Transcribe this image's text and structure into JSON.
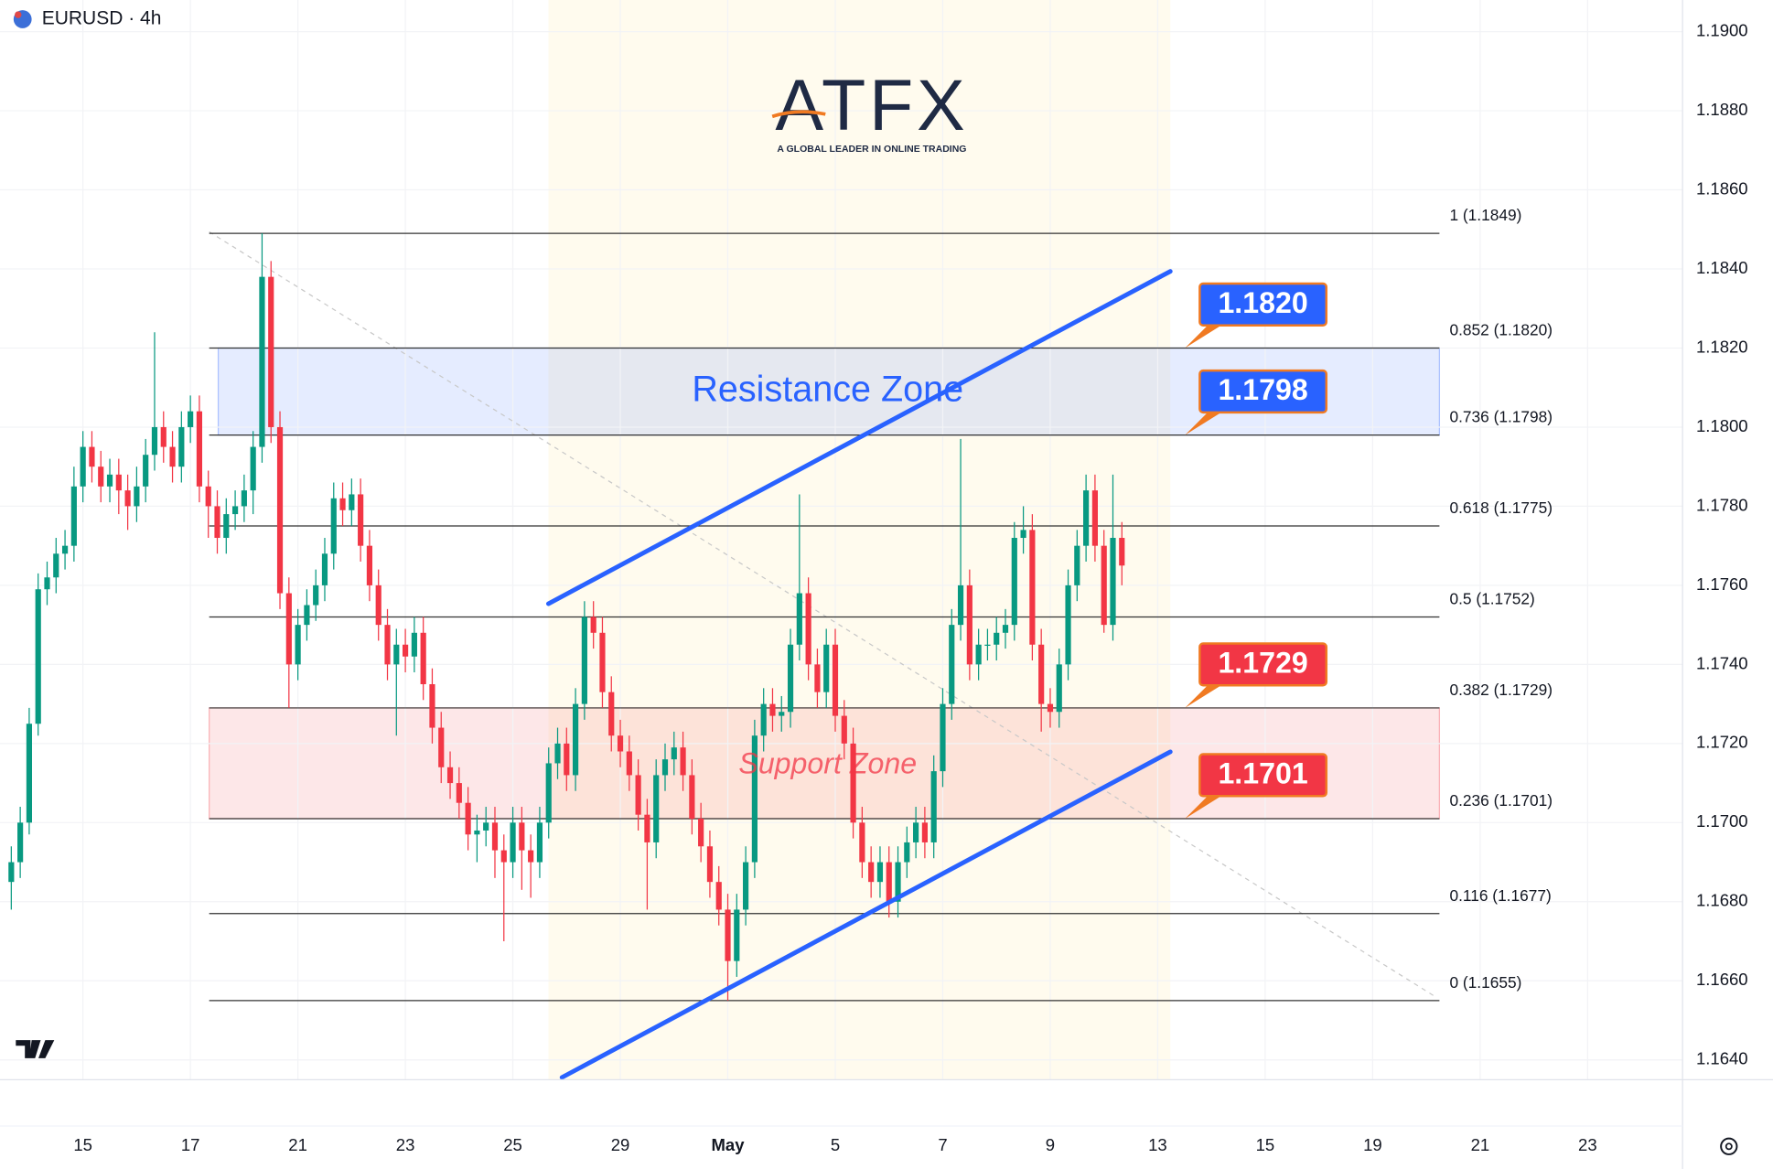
{
  "branding": {
    "symbol": "EURUSD · 4h",
    "logo": "ATFX",
    "tagline": "A GLOBAL LEADER IN ONLINE TRADING"
  },
  "chart_data": {
    "type": "candlestick",
    "up_color": "#089981",
    "down_color": "#f23645",
    "grid": true,
    "xlim": [
      -1.26,
      186.6
    ],
    "ylim": [
      1.1635,
      1.1908
    ],
    "xticks": [
      {
        "value": 8,
        "label": "15"
      },
      {
        "value": 20,
        "label": "17"
      },
      {
        "value": 32,
        "label": "21"
      },
      {
        "value": 44,
        "label": "23"
      },
      {
        "value": 56,
        "label": "25"
      },
      {
        "value": 68,
        "label": "29"
      },
      {
        "value": 80,
        "label": "May"
      },
      {
        "value": 92,
        "label": "5"
      },
      {
        "value": 104,
        "label": "7"
      },
      {
        "value": 116,
        "label": "9"
      },
      {
        "value": 128,
        "label": "13"
      },
      {
        "value": 140,
        "label": "15"
      },
      {
        "value": 152,
        "label": "19"
      },
      {
        "value": 164,
        "label": "21"
      },
      {
        "value": 176,
        "label": "23"
      }
    ],
    "yticks": [
      {
        "value": 1.19,
        "label": "1.1900"
      },
      {
        "value": 1.188,
        "label": "1.1880"
      },
      {
        "value": 1.186,
        "label": "1.1860"
      },
      {
        "value": 1.184,
        "label": "1.1840"
      },
      {
        "value": 1.182,
        "label": "1.1820"
      },
      {
        "value": 1.18,
        "label": "1.1800"
      },
      {
        "value": 1.178,
        "label": "1.1780"
      },
      {
        "value": 1.176,
        "label": "1.1760"
      },
      {
        "value": 1.174,
        "label": "1.1740"
      },
      {
        "value": 1.172,
        "label": "1.1720"
      },
      {
        "value": 1.17,
        "label": "1.1700"
      },
      {
        "value": 1.168,
        "label": "1.1680"
      },
      {
        "value": 1.166,
        "label": "1.1660"
      },
      {
        "value": 1.164,
        "label": "1.1640"
      }
    ],
    "candles": [
      [
        1.1685,
        1.1694,
        1.1678,
        1.169
      ],
      [
        1.169,
        1.1704,
        1.1686,
        1.17
      ],
      [
        1.17,
        1.1729,
        1.1697,
        1.1725
      ],
      [
        1.1725,
        1.1763,
        1.1722,
        1.1759
      ],
      [
        1.1759,
        1.1766,
        1.1755,
        1.1762
      ],
      [
        1.1762,
        1.1772,
        1.1758,
        1.1768
      ],
      [
        1.1768,
        1.1774,
        1.1764,
        1.177
      ],
      [
        1.177,
        1.179,
        1.1766,
        1.1785
      ],
      [
        1.1785,
        1.1799,
        1.1781,
        1.1795
      ],
      [
        1.1795,
        1.1799,
        1.1786,
        1.179
      ],
      [
        1.179,
        1.1794,
        1.1781,
        1.1785
      ],
      [
        1.1785,
        1.1792,
        1.1781,
        1.1788
      ],
      [
        1.1788,
        1.1792,
        1.1778,
        1.1784
      ],
      [
        1.1784,
        1.1788,
        1.1774,
        1.178
      ],
      [
        1.178,
        1.179,
        1.1776,
        1.1785
      ],
      [
        1.1785,
        1.1797,
        1.1781,
        1.1793
      ],
      [
        1.1793,
        1.1824,
        1.1789,
        1.18
      ],
      [
        1.18,
        1.1804,
        1.1791,
        1.1795
      ],
      [
        1.1795,
        1.1799,
        1.1786,
        1.179
      ],
      [
        1.179,
        1.1804,
        1.1786,
        1.18
      ],
      [
        1.18,
        1.1808,
        1.1796,
        1.1804
      ],
      [
        1.1804,
        1.1808,
        1.1781,
        1.1785
      ],
      [
        1.1785,
        1.1789,
        1.1772,
        1.178
      ],
      [
        1.178,
        1.1784,
        1.1768,
        1.1772
      ],
      [
        1.1772,
        1.1782,
        1.1768,
        1.1778
      ],
      [
        1.1778,
        1.1784,
        1.1774,
        1.178
      ],
      [
        1.178,
        1.1788,
        1.1776,
        1.1784
      ],
      [
        1.1784,
        1.1799,
        1.1778,
        1.1795
      ],
      [
        1.1795,
        1.1849,
        1.1791,
        1.1838
      ],
      [
        1.1838,
        1.1842,
        1.1796,
        1.18
      ],
      [
        1.18,
        1.1804,
        1.1754,
        1.1758
      ],
      [
        1.1758,
        1.1762,
        1.1729,
        1.174
      ],
      [
        1.174,
        1.1754,
        1.1736,
        1.175
      ],
      [
        1.175,
        1.1759,
        1.1746,
        1.1755
      ],
      [
        1.1755,
        1.1764,
        1.1751,
        1.176
      ],
      [
        1.176,
        1.1772,
        1.1756,
        1.1768
      ],
      [
        1.1768,
        1.1786,
        1.1764,
        1.1782
      ],
      [
        1.1782,
        1.1786,
        1.1775,
        1.1779
      ],
      [
        1.1779,
        1.1787,
        1.1775,
        1.1783
      ],
      [
        1.1783,
        1.1787,
        1.1766,
        1.177
      ],
      [
        1.177,
        1.1774,
        1.1756,
        1.176
      ],
      [
        1.176,
        1.1764,
        1.1746,
        1.175
      ],
      [
        1.175,
        1.1754,
        1.1736,
        1.174
      ],
      [
        1.174,
        1.1749,
        1.1722,
        1.1745
      ],
      [
        1.1745,
        1.1749,
        1.1738,
        1.1742
      ],
      [
        1.1742,
        1.1752,
        1.1738,
        1.1748
      ],
      [
        1.1748,
        1.1752,
        1.1731,
        1.1735
      ],
      [
        1.1735,
        1.1739,
        1.172,
        1.1724
      ],
      [
        1.1724,
        1.1728,
        1.171,
        1.1714
      ],
      [
        1.1714,
        1.1718,
        1.1706,
        1.171
      ],
      [
        1.171,
        1.1714,
        1.1701,
        1.1705
      ],
      [
        1.1705,
        1.1709,
        1.1693,
        1.1697
      ],
      [
        1.1697,
        1.1702,
        1.169,
        1.1698
      ],
      [
        1.1698,
        1.1704,
        1.1694,
        1.17
      ],
      [
        1.17,
        1.1704,
        1.1686,
        1.1693
      ],
      [
        1.1693,
        1.1697,
        1.167,
        1.169
      ],
      [
        1.169,
        1.1704,
        1.1686,
        1.17
      ],
      [
        1.17,
        1.1704,
        1.1683,
        1.1693
      ],
      [
        1.1693,
        1.1697,
        1.1681,
        1.169
      ],
      [
        1.169,
        1.1704,
        1.1686,
        1.17
      ],
      [
        1.17,
        1.1719,
        1.1696,
        1.1715
      ],
      [
        1.1715,
        1.1724,
        1.1711,
        1.172
      ],
      [
        1.172,
        1.1724,
        1.1708,
        1.1712
      ],
      [
        1.1712,
        1.1734,
        1.1708,
        1.173
      ],
      [
        1.173,
        1.1756,
        1.1726,
        1.1752
      ],
      [
        1.1752,
        1.1756,
        1.1744,
        1.1748
      ],
      [
        1.1748,
        1.1752,
        1.1729,
        1.1733
      ],
      [
        1.1733,
        1.1737,
        1.1718,
        1.1722
      ],
      [
        1.1722,
        1.1726,
        1.1714,
        1.1718
      ],
      [
        1.1718,
        1.1722,
        1.1708,
        1.1712
      ],
      [
        1.1712,
        1.1716,
        1.1698,
        1.1702
      ],
      [
        1.1702,
        1.1706,
        1.1678,
        1.1695
      ],
      [
        1.1695,
        1.1716,
        1.1691,
        1.1712
      ],
      [
        1.1712,
        1.172,
        1.1708,
        1.1716
      ],
      [
        1.1716,
        1.1723,
        1.1712,
        1.1719
      ],
      [
        1.1719,
        1.1723,
        1.1708,
        1.1712
      ],
      [
        1.1712,
        1.1716,
        1.1697,
        1.1701
      ],
      [
        1.1701,
        1.1705,
        1.169,
        1.1694
      ],
      [
        1.1694,
        1.1698,
        1.1681,
        1.1685
      ],
      [
        1.1685,
        1.1689,
        1.1674,
        1.1678
      ],
      [
        1.1678,
        1.1682,
        1.1655,
        1.1665
      ],
      [
        1.1665,
        1.1682,
        1.1661,
        1.1678
      ],
      [
        1.1678,
        1.1694,
        1.1674,
        1.169
      ],
      [
        1.169,
        1.1726,
        1.1686,
        1.1722
      ],
      [
        1.1722,
        1.1734,
        1.1718,
        1.173
      ],
      [
        1.173,
        1.1734,
        1.1723,
        1.1727
      ],
      [
        1.1727,
        1.1732,
        1.1723,
        1.1728
      ],
      [
        1.1728,
        1.1749,
        1.1724,
        1.1745
      ],
      [
        1.1745,
        1.1783,
        1.1741,
        1.1758
      ],
      [
        1.1758,
        1.1762,
        1.1736,
        1.174
      ],
      [
        1.174,
        1.1744,
        1.1729,
        1.1733
      ],
      [
        1.1733,
        1.1749,
        1.1729,
        1.1745
      ],
      [
        1.1745,
        1.1749,
        1.1723,
        1.1727
      ],
      [
        1.1727,
        1.1731,
        1.1716,
        1.172
      ],
      [
        1.172,
        1.1724,
        1.1696,
        1.17
      ],
      [
        1.17,
        1.1704,
        1.1686,
        1.169
      ],
      [
        1.169,
        1.1694,
        1.1681,
        1.1685
      ],
      [
        1.1685,
        1.1694,
        1.1681,
        1.169
      ],
      [
        1.169,
        1.1694,
        1.1676,
        1.168
      ],
      [
        1.168,
        1.1694,
        1.1676,
        1.169
      ],
      [
        1.169,
        1.1699,
        1.1686,
        1.1695
      ],
      [
        1.1695,
        1.1704,
        1.1691,
        1.17
      ],
      [
        1.17,
        1.1704,
        1.1691,
        1.1695
      ],
      [
        1.1695,
        1.1717,
        1.1691,
        1.1713
      ],
      [
        1.1713,
        1.1734,
        1.1709,
        1.173
      ],
      [
        1.173,
        1.1754,
        1.1726,
        1.175
      ],
      [
        1.175,
        1.1797,
        1.1746,
        1.176
      ],
      [
        1.176,
        1.1764,
        1.1736,
        1.174
      ],
      [
        1.174,
        1.1749,
        1.1736,
        1.1745
      ],
      [
        1.1745,
        1.1749,
        1.1741,
        1.1745
      ],
      [
        1.1745,
        1.1752,
        1.1741,
        1.1748
      ],
      [
        1.1748,
        1.1754,
        1.1744,
        1.175
      ],
      [
        1.175,
        1.1776,
        1.1746,
        1.1772
      ],
      [
        1.1772,
        1.178,
        1.1768,
        1.1774
      ],
      [
        1.1774,
        1.1778,
        1.1741,
        1.1745
      ],
      [
        1.1745,
        1.1749,
        1.1723,
        1.173
      ],
      [
        1.173,
        1.1734,
        1.1724,
        1.1728
      ],
      [
        1.1728,
        1.1744,
        1.1724,
        1.174
      ],
      [
        1.174,
        1.1764,
        1.1736,
        1.176
      ],
      [
        1.176,
        1.1774,
        1.1756,
        1.177
      ],
      [
        1.177,
        1.1788,
        1.1766,
        1.1784
      ],
      [
        1.1784,
        1.1788,
        1.1766,
        1.177
      ],
      [
        1.177,
        1.1774,
        1.1748,
        1.175
      ],
      [
        1.175,
        1.1788,
        1.1746,
        1.1772
      ],
      [
        1.1772,
        1.1776,
        1.176,
        1.1765
      ]
    ],
    "fib_levels": [
      {
        "value": 1.1849,
        "label": "1 (1.1849)"
      },
      {
        "value": 1.182,
        "label": "0.852 (1.1820)"
      },
      {
        "value": 1.1798,
        "label": "0.736 (1.1798)"
      },
      {
        "value": 1.1775,
        "label": "0.618 (1.1775)"
      },
      {
        "value": 1.1752,
        "label": "0.5 (1.1752)"
      },
      {
        "value": 1.1729,
        "label": "0.382 (1.1729)"
      },
      {
        "value": 1.1701,
        "label": "0.236 (1.1701)"
      },
      {
        "value": 1.1677,
        "label": "0.116 (1.1677)"
      },
      {
        "value": 1.1655,
        "label": "0 (1.1655)"
      }
    ],
    "zones": [
      {
        "label": "Resistance Zone",
        "from": 1.1798,
        "to": 1.182,
        "color": "#2962ff"
      },
      {
        "label": "Support Zone",
        "from": 1.1701,
        "to": 1.1729,
        "color": "#f23645"
      }
    ],
    "callouts": [
      {
        "label": "1.1820",
        "value": 1.182,
        "color": "#2962ff"
      },
      {
        "label": "1.1798",
        "value": 1.1798,
        "color": "#2962ff"
      },
      {
        "label": "1.1729",
        "value": 1.1729,
        "color": "#f23645"
      },
      {
        "label": "1.1701",
        "value": 1.1701,
        "color": "#f23645"
      }
    ]
  }
}
